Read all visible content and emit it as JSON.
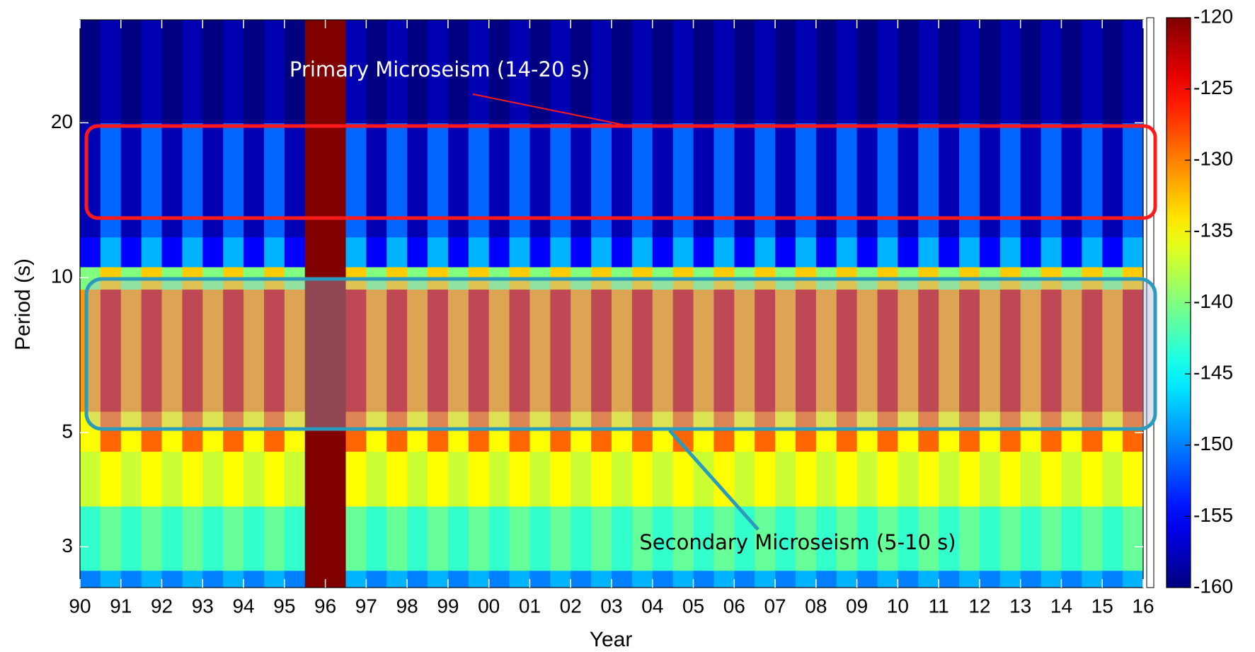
{
  "chart_data": {
    "type": "heatmap",
    "xlabel": "Year",
    "ylabel": "Period (s)",
    "ylog": true,
    "colormap": "jet",
    "clim": [
      -160,
      -120
    ],
    "colorbar_ticks": [
      -120,
      -125,
      -130,
      -135,
      -140,
      -145,
      -150,
      -155,
      -160
    ],
    "xlim": [
      1990,
      2016
    ],
    "ylim": [
      2.5,
      31.7
    ],
    "xticks": [
      {
        "value": 1990,
        "label": "90"
      },
      {
        "value": 1991,
        "label": "91"
      },
      {
        "value": 1992,
        "label": "92"
      },
      {
        "value": 1993,
        "label": "93"
      },
      {
        "value": 1994,
        "label": "94"
      },
      {
        "value": 1995,
        "label": "95"
      },
      {
        "value": 1996,
        "label": "96"
      },
      {
        "value": 1997,
        "label": "97"
      },
      {
        "value": 1998,
        "label": "98"
      },
      {
        "value": 1999,
        "label": "99"
      },
      {
        "value": 2000,
        "label": "00"
      },
      {
        "value": 2001,
        "label": "01"
      },
      {
        "value": 2002,
        "label": "02"
      },
      {
        "value": 2003,
        "label": "03"
      },
      {
        "value": 2004,
        "label": "04"
      },
      {
        "value": 2005,
        "label": "05"
      },
      {
        "value": 2006,
        "label": "06"
      },
      {
        "value": 2007,
        "label": "07"
      },
      {
        "value": 2008,
        "label": "08"
      },
      {
        "value": 2009,
        "label": "09"
      },
      {
        "value": 2010,
        "label": "10"
      },
      {
        "value": 2011,
        "label": "11"
      },
      {
        "value": 2012,
        "label": "12"
      },
      {
        "value": 2013,
        "label": "13"
      },
      {
        "value": 2014,
        "label": "14"
      },
      {
        "value": 2015,
        "label": "15"
      },
      {
        "value": 2016,
        "label": "16"
      }
    ],
    "yticks": [
      3,
      5,
      10,
      20
    ],
    "x": [
      1990.25,
      1990.75,
      1991.25,
      1991.75,
      1992.25,
      1992.75,
      1993.25,
      1993.75,
      1994.25,
      1994.75,
      1995.25,
      1995.75,
      1996.25,
      1996.75,
      1997.25,
      1997.75,
      1998.25,
      1998.75,
      1999.25,
      1999.75,
      2000.25,
      2000.75,
      2001.25,
      2001.75,
      2002.25,
      2002.75,
      2003.25,
      2003.75,
      2004.25,
      2004.75,
      2005.25,
      2005.75,
      2006.25,
      2006.75,
      2007.25,
      2007.75,
      2008.25,
      2008.75,
      2009.25,
      2009.75,
      2010.25,
      2010.75,
      2011.25,
      2011.75,
      2012.25,
      2012.75,
      2013.25,
      2013.75,
      2014.25,
      2014.75,
      2015.25,
      2015.75
    ],
    "y_edges": [
      2.5,
      2.7,
      3.6,
      4.6,
      5.5,
      9.5,
      10.5,
      12,
      20,
      31.7
    ],
    "z": [
      [
        -150,
        -148,
        -150,
        -148,
        -150,
        -148,
        -150,
        -148,
        -150,
        -148,
        -150,
        -120,
        -120,
        -148,
        -150,
        -148,
        -150,
        -148,
        -150,
        -148,
        -150,
        -148,
        -150,
        -148,
        -150,
        -148,
        -150,
        -148,
        -150,
        -148,
        -150,
        -148,
        -150,
        -148,
        -150,
        -148,
        -150,
        -148,
        -150,
        -148,
        -150,
        -148,
        -150,
        -148,
        -150,
        -148,
        -150,
        -148,
        -150,
        -148,
        -150,
        -148
      ],
      [
        -143,
        -141,
        -143,
        -141,
        -143,
        -141,
        -143,
        -141,
        -143,
        -141,
        -143,
        -120,
        -120,
        -141,
        -143,
        -141,
        -143,
        -141,
        -143,
        -141,
        -143,
        -141,
        -143,
        -141,
        -143,
        -141,
        -143,
        -141,
        -143,
        -141,
        -143,
        -141,
        -143,
        -141,
        -143,
        -141,
        -143,
        -141,
        -143,
        -141,
        -143,
        -141,
        -143,
        -141,
        -143,
        -141,
        -143,
        -141,
        -143,
        -141,
        -143,
        -141
      ],
      [
        -137,
        -135,
        -137,
        -135,
        -137,
        -135,
        -137,
        -135,
        -137,
        -135,
        -137,
        -120,
        -120,
        -135,
        -137,
        -135,
        -137,
        -135,
        -137,
        -135,
        -137,
        -135,
        -137,
        -135,
        -137,
        -135,
        -137,
        -135,
        -137,
        -135,
        -137,
        -135,
        -137,
        -135,
        -137,
        -135,
        -137,
        -135,
        -137,
        -135,
        -137,
        -135,
        -137,
        -135,
        -137,
        -135,
        -137,
        -135,
        -137,
        -135,
        -137,
        -135
      ],
      [
        -135,
        -129,
        -135,
        -129,
        -135,
        -129,
        -135,
        -129,
        -135,
        -129,
        -135,
        -120,
        -120,
        -129,
        -135,
        -129,
        -135,
        -129,
        -135,
        -129,
        -135,
        -129,
        -135,
        -129,
        -135,
        -129,
        -135,
        -129,
        -135,
        -129,
        -135,
        -129,
        -135,
        -129,
        -135,
        -129,
        -135,
        -129,
        -135,
        -129,
        -135,
        -129,
        -135,
        -129,
        -135,
        -129,
        -135,
        -129,
        -135,
        -129,
        -135,
        -129
      ],
      [
        -131,
        -123,
        -131,
        -123,
        -131,
        -123,
        -131,
        -123,
        -131,
        -123,
        -131,
        -120,
        -120,
        -123,
        -131,
        -123,
        -131,
        -123,
        -131,
        -123,
        -131,
        -123,
        -131,
        -123,
        -131,
        -123,
        -131,
        -123,
        -131,
        -123,
        -131,
        -123,
        -131,
        -123,
        -131,
        -123,
        -131,
        -123,
        -131,
        -123,
        -131,
        -123,
        -131,
        -123,
        -131,
        -123,
        -131,
        -123,
        -131,
        -123,
        -131,
        -123
      ],
      [
        -140,
        -133,
        -140,
        -133,
        -140,
        -133,
        -140,
        -133,
        -140,
        -133,
        -140,
        -120,
        -120,
        -133,
        -140,
        -133,
        -140,
        -133,
        -140,
        -133,
        -140,
        -133,
        -140,
        -133,
        -140,
        -133,
        -140,
        -133,
        -140,
        -133,
        -140,
        -133,
        -140,
        -133,
        -140,
        -133,
        -140,
        -133,
        -140,
        -133,
        -140,
        -133,
        -140,
        -133,
        -140,
        -133,
        -140,
        -133,
        -140,
        -133,
        -140,
        -133
      ],
      [
        -155,
        -148,
        -155,
        -148,
        -155,
        -148,
        -155,
        -148,
        -155,
        -148,
        -155,
        -120,
        -120,
        -148,
        -155,
        -148,
        -155,
        -148,
        -155,
        -148,
        -155,
        -148,
        -155,
        -148,
        -155,
        -148,
        -155,
        -148,
        -155,
        -148,
        -155,
        -148,
        -155,
        -148,
        -155,
        -148,
        -155,
        -148,
        -155,
        -148,
        -155,
        -148,
        -155,
        -148,
        -155,
        -148,
        -155,
        -148,
        -155,
        -148,
        -155,
        -148
      ],
      [
        -158,
        -151,
        -158,
        -151,
        -158,
        -151,
        -158,
        -151,
        -158,
        -151,
        -158,
        -120,
        -120,
        -151,
        -158,
        -151,
        -158,
        -151,
        -158,
        -151,
        -158,
        -151,
        -158,
        -151,
        -158,
        -151,
        -158,
        -151,
        -158,
        -151,
        -158,
        -151,
        -158,
        -151,
        -158,
        -151,
        -158,
        -151,
        -158,
        -151,
        -158,
        -151,
        -158,
        -151,
        -158,
        -151,
        -158,
        -151,
        -158,
        -151,
        -158,
        -151
      ],
      [
        -160,
        -158,
        -160,
        -158,
        -160,
        -158,
        -160,
        -158,
        -160,
        -158,
        -160,
        -120,
        -120,
        -158,
        -160,
        -158,
        -160,
        -158,
        -160,
        -158,
        -160,
        -158,
        -160,
        -158,
        -160,
        -158,
        -160,
        -158,
        -160,
        -158,
        -160,
        -158,
        -160,
        -158,
        -160,
        -158,
        -160,
        -158,
        -160,
        -158,
        -160,
        -158,
        -160,
        -158,
        -160,
        -158,
        -160,
        -158,
        -160,
        -158,
        -160,
        -158
      ]
    ],
    "annotations": [
      {
        "text": "Primary Microseism (14-20 s)",
        "color": "#ff1a1a"
      },
      {
        "text": "Secondary Microseism (5-10 s)",
        "color": "#2b9bbd"
      }
    ]
  }
}
